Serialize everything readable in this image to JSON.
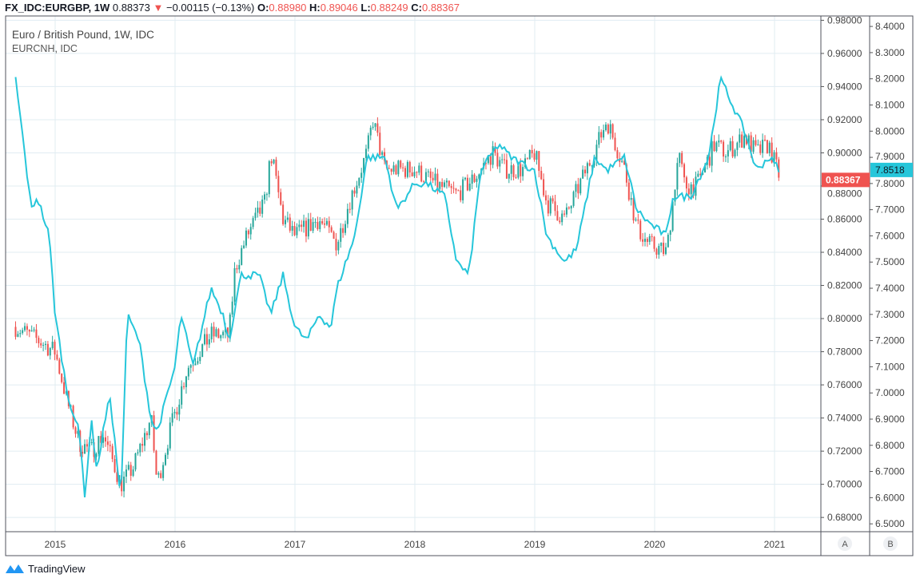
{
  "header": {
    "symbol": "FX_IDC:EURGBP, 1W",
    "last": "0.88373",
    "change": "−0.00115 (−0.13%)",
    "o_label": "O:",
    "o": "0.88980",
    "h_label": "H:",
    "h": "0.89046",
    "l_label": "L:",
    "l": "0.88249",
    "c_label": "C:",
    "c": "0.88367"
  },
  "legend": {
    "main": "Euro / British Pound, 1W, IDC",
    "compare": "EURCNH, IDC"
  },
  "brand": "TradingView",
  "colors": {
    "up": "#26a69a",
    "down": "#ef5350",
    "compare": "#26c6da",
    "grid": "#e1ecf2"
  },
  "chart_data": {
    "type": "candlestick+line",
    "x_ticks": [
      "2015",
      "2016",
      "2017",
      "2018",
      "2019",
      "2020",
      "2021"
    ],
    "axis_a": {
      "name": "A",
      "ticks": [
        "0.98000",
        "0.96000",
        "0.94000",
        "0.92000",
        "0.90000",
        "0.88000",
        "0.86000",
        "0.84000",
        "0.82000",
        "0.80000",
        "0.78000",
        "0.76000",
        "0.74000",
        "0.72000",
        "0.70000",
        "0.68000"
      ],
      "range": [
        0.6714,
        0.9826
      ],
      "last_label": "0.88367",
      "last": 0.88367
    },
    "axis_b": {
      "name": "B",
      "ticks": [
        "8.4000",
        "8.3000",
        "8.2000",
        "8.1000",
        "8.0000",
        "7.9000",
        "7.8000",
        "7.7000",
        "7.6000",
        "7.5000",
        "7.4000",
        "7.3000",
        "7.2000",
        "7.1000",
        "7.0000",
        "6.9000",
        "6.8000",
        "6.7000",
        "6.6000",
        "6.5000"
      ],
      "range": [
        6.47,
        8.44
      ],
      "last_label": "7.8518",
      "last": 7.8518
    },
    "series": [
      {
        "name": "EURGBP",
        "type": "candle",
        "points": [
          [
            2014.67,
            0.795
          ],
          [
            2014.9,
            0.785
          ],
          [
            2015.0,
            0.78
          ],
          [
            2015.1,
            0.75
          ],
          [
            2015.2,
            0.725
          ],
          [
            2015.3,
            0.72
          ],
          [
            2015.4,
            0.73
          ],
          [
            2015.5,
            0.71
          ],
          [
            2015.55,
            0.7
          ],
          [
            2015.65,
            0.71
          ],
          [
            2015.75,
            0.73
          ],
          [
            2015.8,
            0.74
          ],
          [
            2015.85,
            0.7
          ],
          [
            2015.95,
            0.73
          ],
          [
            2016.1,
            0.77
          ],
          [
            2016.3,
            0.79
          ],
          [
            2016.45,
            0.79
          ],
          [
            2016.5,
            0.83
          ],
          [
            2016.6,
            0.85
          ],
          [
            2016.75,
            0.87
          ],
          [
            2016.8,
            0.9
          ],
          [
            2016.9,
            0.86
          ],
          [
            2017.0,
            0.85
          ],
          [
            2017.2,
            0.86
          ],
          [
            2017.35,
            0.845
          ],
          [
            2017.45,
            0.87
          ],
          [
            2017.6,
            0.9
          ],
          [
            2017.65,
            0.92
          ],
          [
            2017.75,
            0.89
          ],
          [
            2017.9,
            0.89
          ],
          [
            2018.0,
            0.89
          ],
          [
            2018.2,
            0.88
          ],
          [
            2018.35,
            0.875
          ],
          [
            2018.5,
            0.885
          ],
          [
            2018.65,
            0.9
          ],
          [
            2018.75,
            0.89
          ],
          [
            2018.9,
            0.89
          ],
          [
            2019.0,
            0.9
          ],
          [
            2019.1,
            0.87
          ],
          [
            2019.25,
            0.86
          ],
          [
            2019.4,
            0.885
          ],
          [
            2019.55,
            0.91
          ],
          [
            2019.6,
            0.92
          ],
          [
            2019.75,
            0.89
          ],
          [
            2019.85,
            0.855
          ],
          [
            2019.95,
            0.845
          ],
          [
            2020.1,
            0.84
          ],
          [
            2020.2,
            0.9
          ],
          [
            2020.25,
            0.88
          ],
          [
            2020.35,
            0.88
          ],
          [
            2020.5,
            0.905
          ],
          [
            2020.6,
            0.9
          ],
          [
            2020.75,
            0.91
          ],
          [
            2020.85,
            0.9
          ],
          [
            2020.95,
            0.905
          ],
          [
            2021.05,
            0.884
          ]
        ]
      },
      {
        "name": "EURCNH",
        "type": "line",
        "points": [
          [
            2014.67,
            8.2
          ],
          [
            2014.75,
            7.9
          ],
          [
            2014.8,
            7.7
          ],
          [
            2014.85,
            7.75
          ],
          [
            2014.95,
            7.6
          ],
          [
            2015.0,
            7.3
          ],
          [
            2015.1,
            7.0
          ],
          [
            2015.2,
            6.85
          ],
          [
            2015.25,
            6.6
          ],
          [
            2015.3,
            6.9
          ],
          [
            2015.35,
            6.7
          ],
          [
            2015.45,
            7.0
          ],
          [
            2015.5,
            6.8
          ],
          [
            2015.55,
            6.6
          ],
          [
            2015.6,
            7.3
          ],
          [
            2015.7,
            7.2
          ],
          [
            2015.8,
            6.9
          ],
          [
            2015.85,
            6.85
          ],
          [
            2016.0,
            7.1
          ],
          [
            2016.05,
            7.3
          ],
          [
            2016.15,
            7.1
          ],
          [
            2016.25,
            7.3
          ],
          [
            2016.3,
            7.4
          ],
          [
            2016.4,
            7.3
          ],
          [
            2016.45,
            7.2
          ],
          [
            2016.55,
            7.45
          ],
          [
            2016.7,
            7.45
          ],
          [
            2016.8,
            7.3
          ],
          [
            2016.9,
            7.45
          ],
          [
            2017.0,
            7.25
          ],
          [
            2017.1,
            7.2
          ],
          [
            2017.2,
            7.3
          ],
          [
            2017.3,
            7.25
          ],
          [
            2017.35,
            7.4
          ],
          [
            2017.5,
            7.6
          ],
          [
            2017.6,
            7.9
          ],
          [
            2017.75,
            7.9
          ],
          [
            2017.85,
            7.7
          ],
          [
            2018.0,
            7.8
          ],
          [
            2018.1,
            7.8
          ],
          [
            2018.25,
            7.75
          ],
          [
            2018.35,
            7.5
          ],
          [
            2018.45,
            7.45
          ],
          [
            2018.55,
            7.85
          ],
          [
            2018.7,
            7.95
          ],
          [
            2018.8,
            7.9
          ],
          [
            2019.0,
            7.85
          ],
          [
            2019.1,
            7.6
          ],
          [
            2019.25,
            7.5
          ],
          [
            2019.35,
            7.55
          ],
          [
            2019.5,
            7.9
          ],
          [
            2019.6,
            7.85
          ],
          [
            2019.75,
            7.9
          ],
          [
            2019.85,
            7.7
          ],
          [
            2019.95,
            7.65
          ],
          [
            2020.1,
            7.6
          ],
          [
            2020.15,
            7.75
          ],
          [
            2020.3,
            7.75
          ],
          [
            2020.45,
            7.9
          ],
          [
            2020.55,
            8.2
          ],
          [
            2020.65,
            8.1
          ],
          [
            2020.75,
            8.0
          ],
          [
            2020.85,
            7.85
          ],
          [
            2020.95,
            7.9
          ],
          [
            2021.05,
            7.85
          ]
        ]
      }
    ]
  }
}
